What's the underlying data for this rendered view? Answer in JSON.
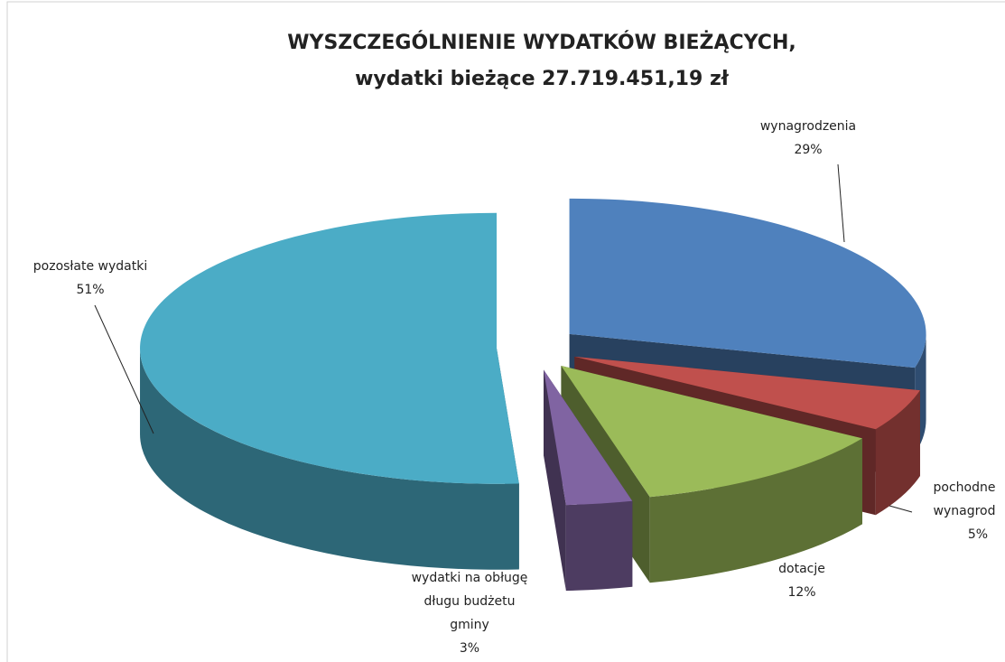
{
  "chart_data": {
    "type": "pie3d",
    "title": "WYSZCZEGÓLNIENIE WYDATKÓW BIEŻĄCYCH,",
    "subtitle": "wydatki bieżące 27.719.451,19 zł",
    "categories": [
      "wynagrodzenia",
      "pochodne wynagrod",
      "dotacje",
      "wydatki na obługę długu budżetu gminy",
      "pozosłate wydatki"
    ],
    "values": [
      29,
      5,
      12,
      3,
      51
    ],
    "value_labels": [
      "29%",
      "5%",
      "12%",
      "3%",
      "51%"
    ],
    "colors": [
      "#4f81bd",
      "#c0504d",
      "#9bbb59",
      "#8064a2",
      "#4bacc6"
    ]
  }
}
